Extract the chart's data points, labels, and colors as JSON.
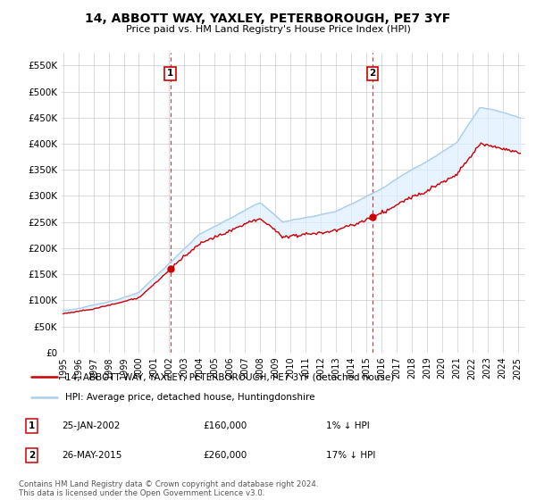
{
  "title": "14, ABBOTT WAY, YAXLEY, PETERBOROUGH, PE7 3YF",
  "subtitle": "Price paid vs. HM Land Registry's House Price Index (HPI)",
  "legend_line1": "14, ABBOTT WAY, YAXLEY, PETERBOROUGH, PE7 3YF (detached house)",
  "legend_line2": "HPI: Average price, detached house, Huntingdonshire",
  "annotation1_date": "25-JAN-2002",
  "annotation1_price": "£160,000",
  "annotation1_hpi": "1% ↓ HPI",
  "annotation2_date": "26-MAY-2015",
  "annotation2_price": "£260,000",
  "annotation2_hpi": "17% ↓ HPI",
  "footer": "Contains HM Land Registry data © Crown copyright and database right 2024.\nThis data is licensed under the Open Government Licence v3.0.",
  "hpi_color": "#aaccee",
  "price_color": "#cc0000",
  "annotation_color": "#cc0000",
  "fill_color": "#ddeeff",
  "background_color": "#ffffff",
  "grid_color": "#cccccc",
  "ylim": [
    0,
    575000
  ],
  "yticks": [
    0,
    50000,
    100000,
    150000,
    200000,
    250000,
    300000,
    350000,
    400000,
    450000,
    500000,
    550000
  ],
  "xlim_start": 1994.9,
  "xlim_end": 2025.5,
  "sale1_x": 2002.07,
  "sale1_y": 160000,
  "sale2_x": 2015.41,
  "sale2_y": 260000
}
